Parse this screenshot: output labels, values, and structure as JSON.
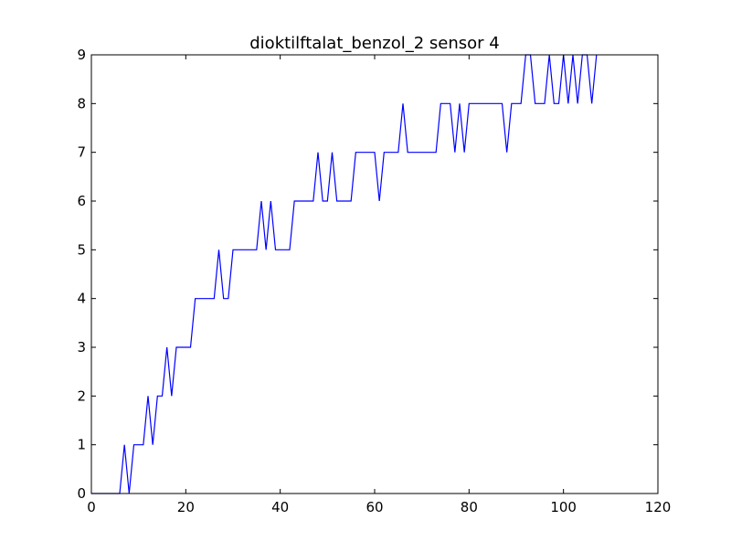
{
  "chart_data": {
    "type": "line",
    "title": "dioktilftalat_benzol_2 sensor 4",
    "xlabel": "",
    "ylabel": "",
    "xlim": [
      0,
      120
    ],
    "ylim": [
      0,
      9
    ],
    "xticks": [
      0,
      20,
      40,
      60,
      80,
      100,
      120
    ],
    "yticks": [
      0,
      1,
      2,
      3,
      4,
      5,
      6,
      7,
      8,
      9
    ],
    "grid": false,
    "legend": "none",
    "line_color": "#0000ff",
    "series": [
      {
        "x": [
          0,
          1,
          2,
          3,
          4,
          5,
          6,
          7,
          8,
          9,
          10,
          11,
          12,
          13,
          14,
          15,
          16,
          17,
          18,
          19,
          20,
          21,
          22,
          23,
          24,
          25,
          26,
          27,
          28,
          29,
          30,
          31,
          32,
          33,
          34,
          35,
          36,
          37,
          38,
          39,
          40,
          41,
          42,
          43,
          44,
          45,
          46,
          47,
          48,
          49,
          50,
          51,
          52,
          53,
          54,
          55,
          56,
          57,
          58,
          59,
          60,
          61,
          62,
          63,
          64,
          65,
          66,
          67,
          68,
          69,
          70,
          71,
          72,
          73,
          74,
          75,
          76,
          77,
          78,
          79,
          80,
          81,
          82,
          83,
          84,
          85,
          86,
          87,
          88,
          89,
          90,
          91,
          92,
          93,
          94,
          95,
          96,
          97,
          98,
          99,
          100,
          101,
          102,
          103,
          104,
          105,
          106,
          107
        ],
        "values": [
          0,
          0,
          0,
          0,
          0,
          0,
          0,
          1,
          0,
          1,
          1,
          1,
          2,
          1,
          2,
          2,
          3,
          2,
          3,
          3,
          3,
          3,
          4,
          4,
          4,
          4,
          4,
          5,
          4,
          4,
          5,
          5,
          5,
          5,
          5,
          5,
          6,
          5,
          6,
          5,
          5,
          5,
          5,
          6,
          6,
          6,
          6,
          6,
          7,
          6,
          6,
          7,
          6,
          6,
          6,
          6,
          7,
          7,
          7,
          7,
          7,
          6,
          7,
          7,
          7,
          7,
          8,
          7,
          7,
          7,
          7,
          7,
          7,
          7,
          8,
          8,
          8,
          7,
          8,
          7,
          8,
          8,
          8,
          8,
          8,
          8,
          8,
          8,
          7,
          8,
          8,
          8,
          9,
          9,
          8,
          8,
          8,
          9,
          8,
          8,
          9,
          8,
          9,
          8,
          9,
          9,
          8,
          9
        ]
      }
    ]
  }
}
